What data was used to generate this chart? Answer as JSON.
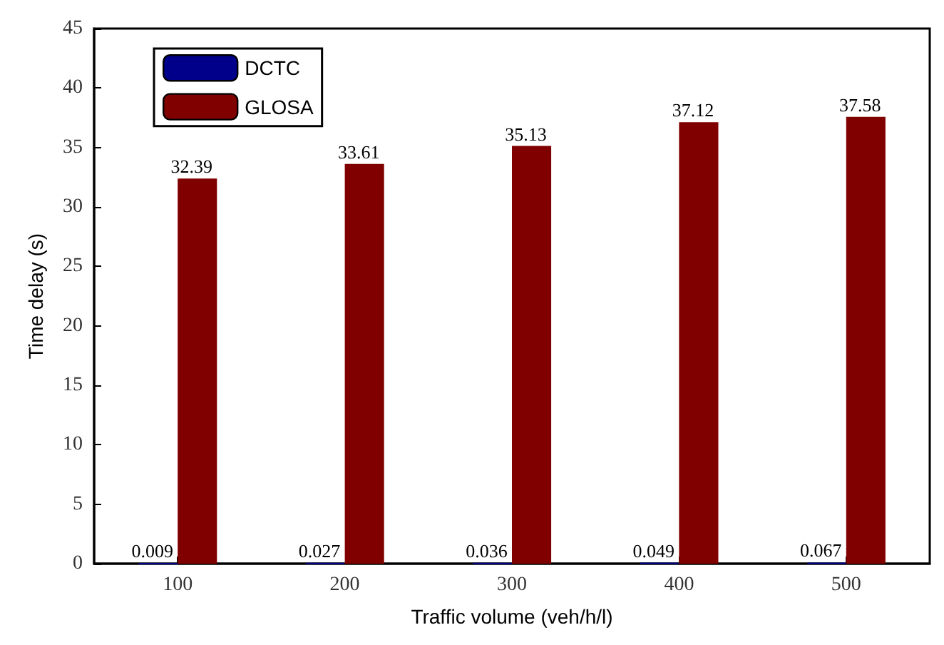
{
  "chart_data": {
    "type": "bar",
    "xlabel": "Traffic volume (veh/h/l)",
    "ylabel": "Time delay (s)",
    "categories": [
      "100",
      "200",
      "300",
      "400",
      "500"
    ],
    "series": [
      {
        "name": "DCTC",
        "color": "#00008b",
        "values": [
          0.009,
          0.027,
          0.036,
          0.049,
          0.067
        ]
      },
      {
        "name": "GLOSA",
        "color": "#800000",
        "values": [
          32.39,
          33.61,
          35.13,
          37.12,
          37.58
        ]
      }
    ],
    "ylim": [
      0,
      45
    ],
    "yticks": [
      0,
      5,
      10,
      15,
      20,
      25,
      30,
      35,
      40,
      45
    ],
    "data_labels": true,
    "legend": "top left",
    "grid": false
  }
}
